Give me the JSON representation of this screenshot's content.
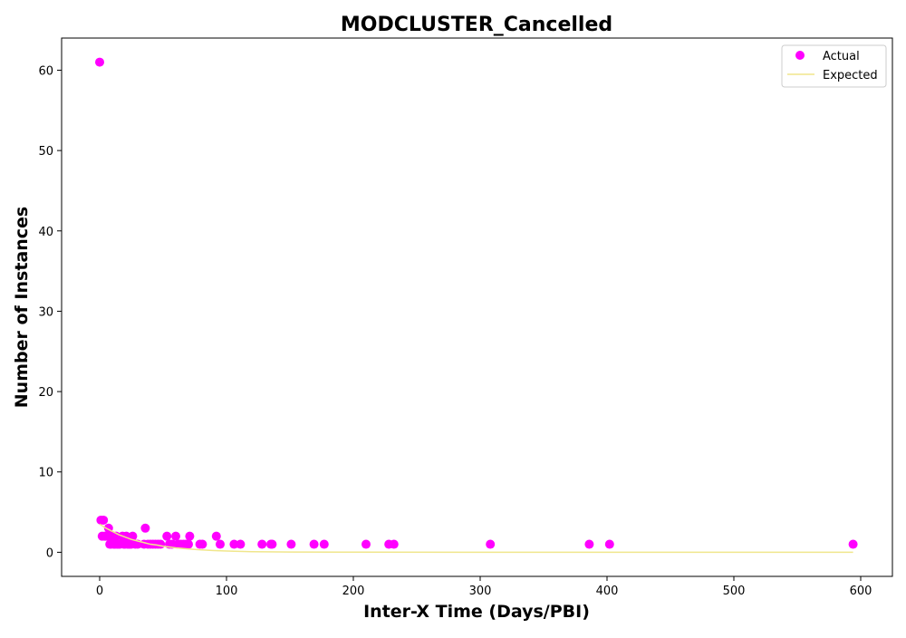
{
  "chart_data": {
    "type": "scatter",
    "title": "MODCLUSTER_Cancelled",
    "xlabel": "Inter-X Time (Days/PBI)",
    "ylabel": "Number of Instances",
    "xlim": [
      -30,
      625
    ],
    "ylim": [
      -3,
      64
    ],
    "xticks": [
      0,
      100,
      200,
      300,
      400,
      500,
      600
    ],
    "yticks": [
      0,
      10,
      20,
      30,
      40,
      50,
      60
    ],
    "grid": false,
    "legend": {
      "placement": "top-right",
      "entries": [
        "Actual",
        "Expected"
      ]
    },
    "colors": {
      "actual": "#ff00ff",
      "expected": "#f0e68c",
      "axes": "#000000"
    },
    "series": [
      {
        "name": "Actual",
        "kind": "scatter",
        "x": [
          0,
          1,
          2,
          3,
          4,
          5,
          7,
          8,
          8,
          9,
          10,
          11,
          12,
          13,
          14,
          15,
          16,
          18,
          19,
          20,
          21,
          22,
          23,
          24,
          25,
          26,
          28,
          30,
          35,
          36,
          38,
          40,
          42,
          44,
          46,
          48,
          53,
          55,
          57,
          60,
          62,
          64,
          66,
          68,
          70,
          71,
          79,
          81,
          92,
          95,
          106,
          111,
          128,
          135,
          136,
          151,
          169,
          177,
          210,
          228,
          232,
          308,
          386,
          402,
          594
        ],
        "y": [
          61,
          4,
          2,
          4,
          2,
          2,
          3,
          1,
          2,
          1,
          2,
          1,
          1,
          2,
          1,
          1,
          1,
          2,
          1,
          1,
          2,
          1,
          1,
          1,
          1,
          2,
          1,
          1,
          1,
          3,
          1,
          1,
          1,
          1,
          1,
          1,
          2,
          1,
          1,
          2,
          1,
          1,
          1,
          1,
          1,
          2,
          1,
          1,
          2,
          1,
          1,
          1,
          1,
          1,
          1,
          1,
          1,
          1,
          1,
          1,
          1,
          1,
          1,
          1,
          1
        ]
      },
      {
        "name": "Expected",
        "kind": "line",
        "x": [
          0,
          5,
          10,
          15,
          20,
          25,
          30,
          35,
          40,
          45,
          50,
          55,
          60,
          65,
          70,
          75,
          80,
          90,
          100,
          120,
          150,
          200,
          300,
          400,
          500,
          594
        ],
        "y": [
          3.5,
          3.0,
          2.6,
          2.2,
          1.9,
          1.6,
          1.4,
          1.2,
          1.0,
          0.9,
          0.75,
          0.65,
          0.55,
          0.48,
          0.41,
          0.35,
          0.3,
          0.22,
          0.16,
          0.08,
          0.03,
          0.01,
          0,
          0,
          0,
          0
        ]
      }
    ]
  }
}
